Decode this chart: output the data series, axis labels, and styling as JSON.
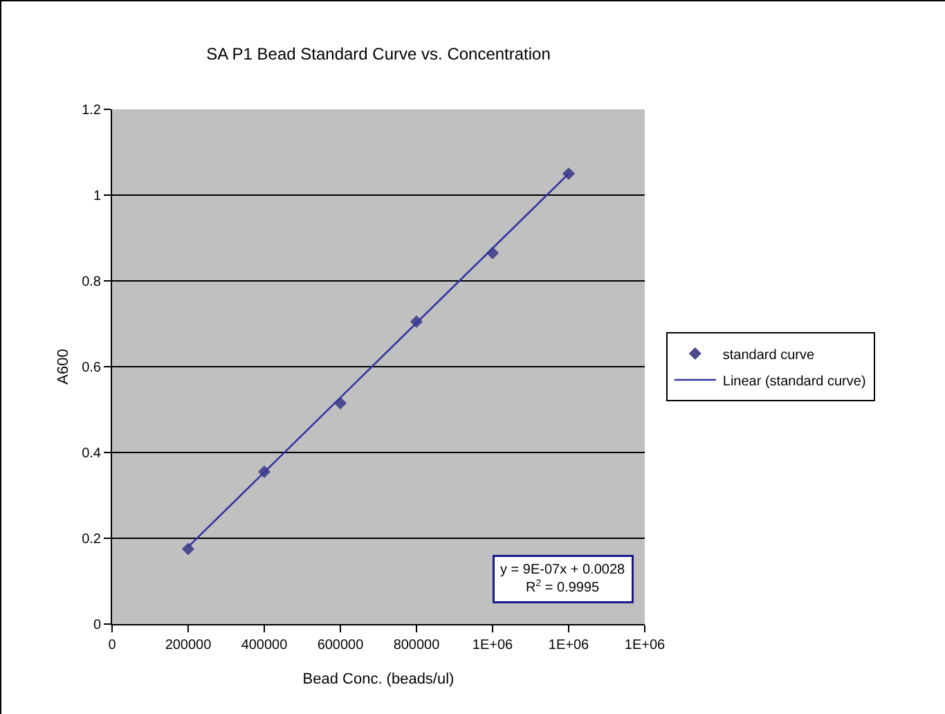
{
  "chart_data": {
    "type": "scatter",
    "title": "SA P1 Bead Standard Curve vs. Concentration",
    "xlabel": "Bead Conc. (beads/ul)",
    "ylabel": "A600",
    "x": [
      200000,
      400000,
      600000,
      800000,
      1000000,
      1200000
    ],
    "series": [
      {
        "name": "standard curve",
        "marker": "diamond",
        "color": "#4b4b8f",
        "values": [
          0.175,
          0.355,
          0.515,
          0.705,
          0.865,
          1.05
        ]
      },
      {
        "name": "Linear (standard curve)",
        "type": "line",
        "marker": "none",
        "color": "#3333a0",
        "x": [
          200000,
          1200000
        ],
        "values": [
          0.18,
          1.05
        ],
        "line_style": "solid"
      }
    ],
    "xlim": [
      0,
      1400000
    ],
    "xticks": [
      0,
      200000,
      400000,
      600000,
      800000,
      {
        "value": 1000000,
        "label": "1E+06"
      },
      {
        "value": 1200000,
        "label": "1E+06"
      },
      {
        "value": 1400000,
        "label": "1E+06"
      }
    ],
    "ylim": [
      0,
      1.2
    ],
    "yticks": [
      0,
      0.2,
      0.4,
      0.6,
      0.8,
      1,
      1.2
    ],
    "grid": "y",
    "legend": "right",
    "annotations": [
      "y = 9E-07x + 0.0028\nR$^{2}$ = 0.9995"
    ]
  }
}
